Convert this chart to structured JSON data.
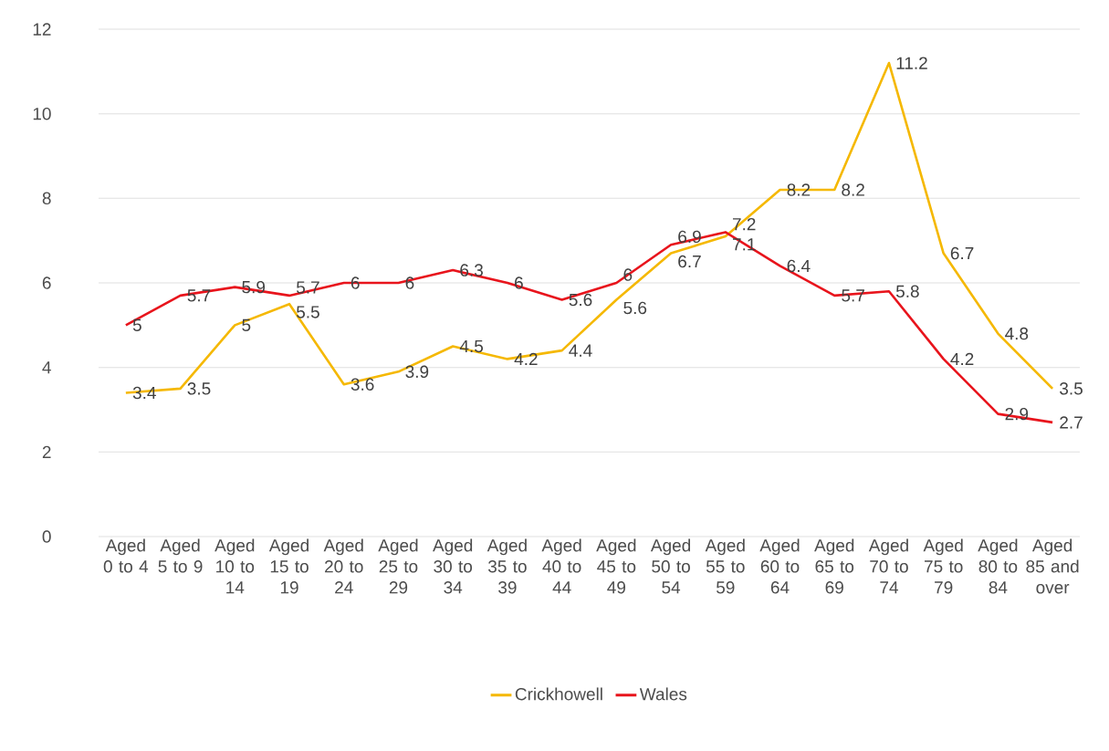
{
  "chart_data": {
    "type": "line",
    "categories": [
      "Aged 0 to 4",
      "Aged 5 to 9",
      "Aged 10 to 14",
      "Aged 15 to 19",
      "Aged 20 to 24",
      "Aged 25 to 29",
      "Aged 30 to 34",
      "Aged 35 to 39",
      "Aged 40 to 44",
      "Aged 45 to 49",
      "Aged 50 to 54",
      "Aged 55 to 59",
      "Aged 60 to 64",
      "Aged 65 to 69",
      "Aged 70 to 74",
      "Aged 75 to 79",
      "Aged 80 to 84",
      "Aged 85 and over"
    ],
    "series": [
      {
        "name": "Crickhowell",
        "color": "#f5b800",
        "values": [
          3.4,
          3.5,
          5,
          5.5,
          3.6,
          3.9,
          4.5,
          4.2,
          4.4,
          5.6,
          6.7,
          7.1,
          8.2,
          8.2,
          11.2,
          6.7,
          4.8,
          3.5
        ]
      },
      {
        "name": "Wales",
        "color": "#e8141c",
        "values": [
          5,
          5.7,
          5.9,
          5.7,
          6,
          6,
          6.3,
          6,
          5.6,
          6,
          6.9,
          7.2,
          6.4,
          5.7,
          5.8,
          4.2,
          2.9,
          2.7
        ]
      }
    ],
    "ylim": [
      0,
      12
    ],
    "yticks": [
      0,
      2,
      4,
      6,
      8,
      10,
      12
    ],
    "grid": "y",
    "legend": "bottom",
    "data_labels": true,
    "marker": "none",
    "line_style": "solid"
  }
}
